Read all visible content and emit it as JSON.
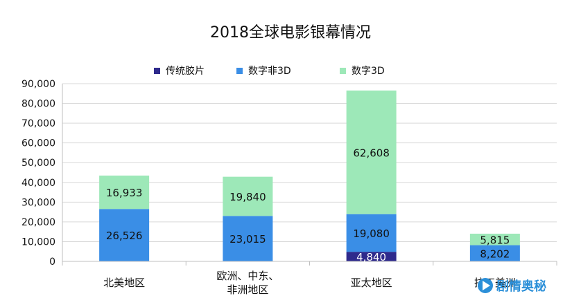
{
  "chart_data": {
    "type": "bar",
    "stacked": true,
    "title": "2018全球电影银幕情况",
    "categories": [
      "北美地区",
      "欧洲、中东、非洲地区",
      "亚太地区",
      "拉丁美洲"
    ],
    "series": [
      {
        "name": "传统胶片",
        "color": "#2e2a8c",
        "values": [
          0,
          0,
          4840,
          0
        ],
        "labels": [
          "",
          "",
          "4,840",
          ""
        ]
      },
      {
        "name": "数字非3D",
        "color": "#3a8ee6",
        "values": [
          26526,
          23015,
          19080,
          8202
        ],
        "labels": [
          "26,526",
          "23,015",
          "19,080",
          "8,202"
        ]
      },
      {
        "name": "数字3D",
        "color": "#9de8b8",
        "values": [
          16933,
          19840,
          62608,
          5815
        ],
        "labels": [
          "16,933",
          "19,840",
          "62,608",
          "5,815"
        ]
      }
    ],
    "ylim": [
      0,
      90000
    ],
    "yticks": [
      "0",
      "10,000",
      "20,000",
      "30,000",
      "40,000",
      "50,000",
      "60,000",
      "70,000",
      "80,000",
      "90,000"
    ],
    "grid": true,
    "legend_position": "top"
  },
  "watermark": {
    "text": "剧情奥秘",
    "icon": "play-circle-icon"
  }
}
